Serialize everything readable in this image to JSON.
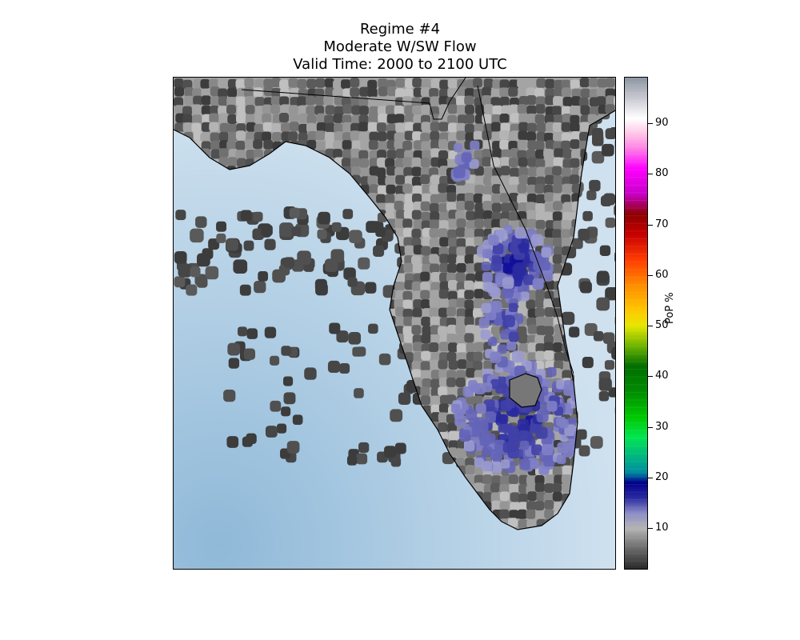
{
  "title": {
    "line1": "Regime #4",
    "line2": "Moderate W/SW Flow",
    "line3": "Valid Time: 2000 to 2100 UTC"
  },
  "colorbar": {
    "label": "PoP %",
    "ticks": [
      "10",
      "20",
      "30",
      "40",
      "50",
      "60",
      "70",
      "80",
      "90"
    ],
    "range": [
      2,
      99
    ],
    "stops": [
      {
        "v": 2,
        "c": "#2a2a2a"
      },
      {
        "v": 6,
        "c": "#6a6a6a"
      },
      {
        "v": 10,
        "c": "#b4b4b4"
      },
      {
        "v": 13,
        "c": "#8c8cc8"
      },
      {
        "v": 16,
        "c": "#2a2aa0"
      },
      {
        "v": 19,
        "c": "#00008c"
      },
      {
        "v": 21,
        "c": "#008ca0"
      },
      {
        "v": 24,
        "c": "#00b482"
      },
      {
        "v": 28,
        "c": "#00e650"
      },
      {
        "v": 32,
        "c": "#00c800"
      },
      {
        "v": 37,
        "c": "#008c00"
      },
      {
        "v": 42,
        "c": "#006e00"
      },
      {
        "v": 46,
        "c": "#6eb400"
      },
      {
        "v": 50,
        "c": "#e6e600"
      },
      {
        "v": 53,
        "c": "#ffc800"
      },
      {
        "v": 58,
        "c": "#ff8c00"
      },
      {
        "v": 63,
        "c": "#ff3c00"
      },
      {
        "v": 68,
        "c": "#c80000"
      },
      {
        "v": 72,
        "c": "#8c0000"
      },
      {
        "v": 76,
        "c": "#c800c8"
      },
      {
        "v": 81,
        "c": "#ff00ff"
      },
      {
        "v": 85,
        "c": "#ff82e6"
      },
      {
        "v": 88,
        "c": "#ffc8e6"
      },
      {
        "v": 91,
        "c": "#ffffff"
      },
      {
        "v": 95,
        "c": "#c8c8d2"
      },
      {
        "v": 99,
        "c": "#8c96a0"
      }
    ]
  },
  "map": {
    "ocean_color": "#c4daea",
    "ocean_deep_color": "#93bcd9",
    "land_base_color": "#a8a8a8",
    "coastline_color": "#000000",
    "max_pop_region": "East-central Florida / Lake Okeechobee area (~15-20%)"
  }
}
